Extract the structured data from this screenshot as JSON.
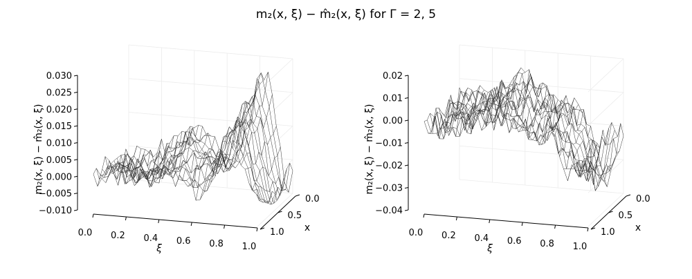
{
  "figure": {
    "title": "m₂(x, ξ) − m̂₂(x, ξ) for Γ = 2, 5"
  },
  "chart_data": [
    {
      "type": "surface3d",
      "zlabel": "m₂(x, ξ) − m̂₂(x, ξ)",
      "xlabel": "ξ",
      "ylabel": "x",
      "xlim": [
        0.0,
        1.0
      ],
      "ylim": [
        0.0,
        1.0
      ],
      "zlim": [
        -0.01,
        0.033
      ],
      "xticks": [
        "0.0",
        "0.2",
        "0.4",
        "0.6",
        "0.8",
        "1.0"
      ],
      "yticks": [
        "0.0",
        "0.5",
        "1.0"
      ],
      "zticks": [
        "0.030",
        "0.025",
        "0.020",
        "0.015",
        "0.010",
        "0.005",
        "0.000",
        "−0.005",
        "−0.010"
      ],
      "grid": true,
      "peak": {
        "xi": 0.82,
        "value": 0.031
      },
      "min": {
        "xi": 0.95,
        "value": -0.009
      }
    },
    {
      "type": "surface3d",
      "zlabel": "m₂(x, ξ) − m̂₂(x, ξ)",
      "xlabel": "ξ",
      "ylabel": "x",
      "xlim": [
        0.0,
        1.0
      ],
      "ylim": [
        0.0,
        1.0
      ],
      "zlim": [
        -0.04,
        0.025
      ],
      "xticks": [
        "0.0",
        "0.2",
        "0.4",
        "0.6",
        "0.8",
        "1.0"
      ],
      "yticks": [
        "0.0",
        "0.5",
        "1.0"
      ],
      "zticks": [
        "0.02",
        "0.01",
        "0.00",
        "−0.01",
        "−0.02",
        "−0.03",
        "−0.04"
      ],
      "grid": true,
      "peak": {
        "xi": 0.45,
        "value": 0.022
      },
      "min": {
        "xi": 0.9,
        "value": -0.037
      }
    }
  ]
}
